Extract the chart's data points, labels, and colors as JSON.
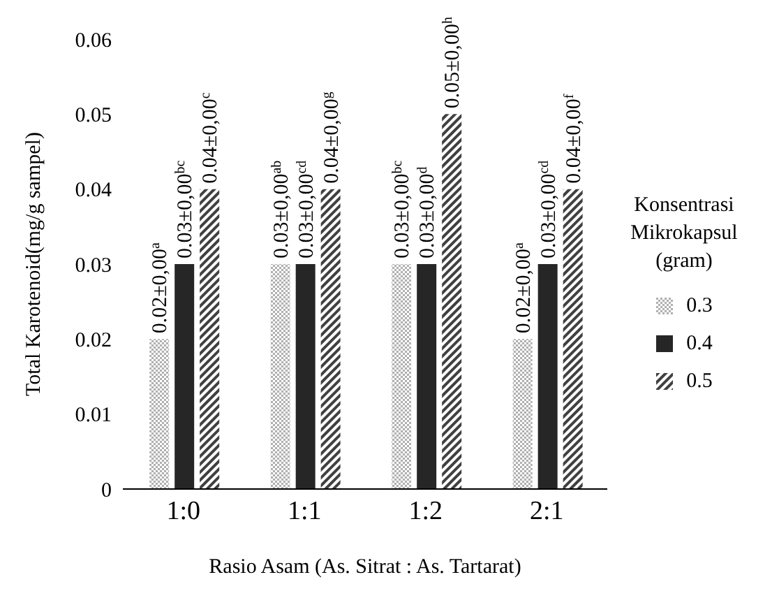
{
  "chart_data": {
    "type": "bar",
    "xlabel": "Rasio Asam (As. Sitrat : As. Tartarat)",
    "ylabel": "Total Karotenoid(mg/g sampel)",
    "legend_title": "Konsentrasi Mikrokapsul (gram)",
    "categories": [
      "1:0",
      "1:1",
      "1:2",
      "2:1"
    ],
    "series": [
      {
        "name": "0.3",
        "color": "#b0b0b0",
        "values": [
          0.02,
          0.03,
          0.03,
          0.02
        ],
        "value_labels": [
          "0.02±0,00$^{a}$",
          "0.03±0,00$^{ab}$",
          "0.03±0,00$^{bc}$",
          "0.02±0,00$^{a}$"
        ]
      },
      {
        "name": "0.4",
        "color": "#262626",
        "values": [
          0.03,
          0.03,
          0.03,
          0.03
        ],
        "value_labels": [
          "0.03±0,00$^{bc}$",
          "0.03±0,00$^{cd}$",
          "0.03±0,00$^{d}$",
          "0.03±0,00$^{cd}$"
        ]
      },
      {
        "name": "0.5",
        "color": "#404040",
        "values": [
          0.04,
          0.04,
          0.05,
          0.04
        ],
        "value_labels": [
          "0.04±0,00$^{c}$",
          "0.04±0,00$^{g}$",
          "0.05±0,00$^{h}$",
          "0.04±0,00$^{f}$"
        ]
      }
    ],
    "ylim": [
      0,
      0.06
    ],
    "yticks": [
      0,
      0.01,
      0.02,
      0.03,
      0.04,
      0.05,
      0.06
    ],
    "grid": false,
    "legend": "right"
  }
}
